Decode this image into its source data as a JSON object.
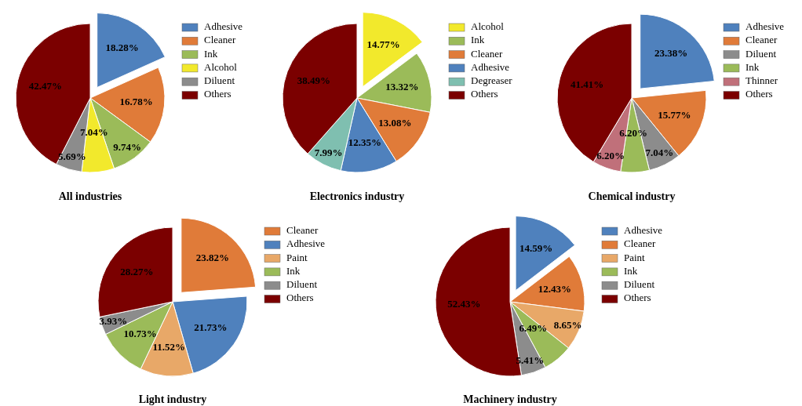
{
  "chart_data": [
    {
      "type": "pie",
      "title": "All industries",
      "categories": [
        "Adhesive",
        "Cleaner",
        "Ink",
        "Alcohol",
        "Diluent",
        "Others"
      ],
      "values": [
        18.28,
        16.78,
        9.74,
        7.04,
        5.69,
        42.47
      ],
      "value_labels": [
        "18.28%",
        "16.78%",
        "9.74%",
        "7.04%",
        "5.69%",
        "42.47%"
      ],
      "colors": [
        "#4f81bd",
        "#e07b39",
        "#9bbb59",
        "#f2e92c",
        "#8c8c8c",
        "#7b0000"
      ],
      "legend": "right"
    },
    {
      "type": "pie",
      "title": "Electronics industry",
      "categories": [
        "Alcohol",
        "Ink",
        "Cleaner",
        "Adhesive",
        "Degreaser",
        "Others"
      ],
      "values": [
        14.77,
        13.32,
        13.08,
        12.35,
        7.99,
        38.49
      ],
      "value_labels": [
        "14.77%",
        "13.32%",
        "13.08%",
        "12.35%",
        "7.99%",
        "38.49%"
      ],
      "colors": [
        "#f2e92c",
        "#9bbb59",
        "#e07b39",
        "#4f81bd",
        "#7fbfb0",
        "#7b0000"
      ],
      "legend": "right"
    },
    {
      "type": "pie",
      "title": "Chemical industry",
      "categories": [
        "Adhesive",
        "Cleaner",
        "Diluent",
        "Ink",
        "Thinner",
        "Others"
      ],
      "values": [
        23.38,
        15.77,
        7.04,
        6.2,
        6.2,
        41.41
      ],
      "value_labels": [
        "23.38%",
        "15.77%",
        "7.04%",
        "6.20%",
        "6.20%",
        "41.41%"
      ],
      "colors": [
        "#4f81bd",
        "#e07b39",
        "#8c8c8c",
        "#9bbb59",
        "#c0707a",
        "#7b0000"
      ],
      "legend": "right"
    },
    {
      "type": "pie",
      "title": "Light industry",
      "categories": [
        "Cleaner",
        "Adhesive",
        "Paint",
        "Ink",
        "Diluent",
        "Others"
      ],
      "values": [
        23.82,
        21.73,
        11.52,
        10.73,
        3.93,
        28.27
      ],
      "value_labels": [
        "23.82%",
        "21.73%",
        "11.52%",
        "10.73%",
        "3.93%",
        "28.27%"
      ],
      "colors": [
        "#e07b39",
        "#4f81bd",
        "#e8a868",
        "#9bbb59",
        "#8c8c8c",
        "#7b0000"
      ],
      "legend": "right"
    },
    {
      "type": "pie",
      "title": "Machinery industry",
      "categories": [
        "Adhesive",
        "Cleaner",
        "Paint",
        "Ink",
        "Diluent",
        "Others"
      ],
      "values": [
        14.59,
        12.43,
        8.65,
        6.49,
        5.41,
        52.43
      ],
      "value_labels": [
        "14.59%",
        "12.43%",
        "8.65%",
        "6.49%",
        "5.41%",
        "52.43%"
      ],
      "colors": [
        "#4f81bd",
        "#e07b39",
        "#e8a868",
        "#9bbb59",
        "#8c8c8c",
        "#7b0000"
      ],
      "legend": "right"
    }
  ]
}
